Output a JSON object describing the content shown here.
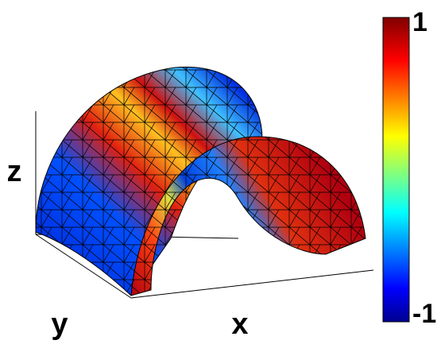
{
  "chart_data": {
    "type": "surface",
    "colormap": "jet",
    "xlabel": "x",
    "ylabel": "y",
    "zlabel": "z",
    "clim": [
      -1,
      1
    ],
    "cticks": [
      -1,
      1
    ]
  }
}
